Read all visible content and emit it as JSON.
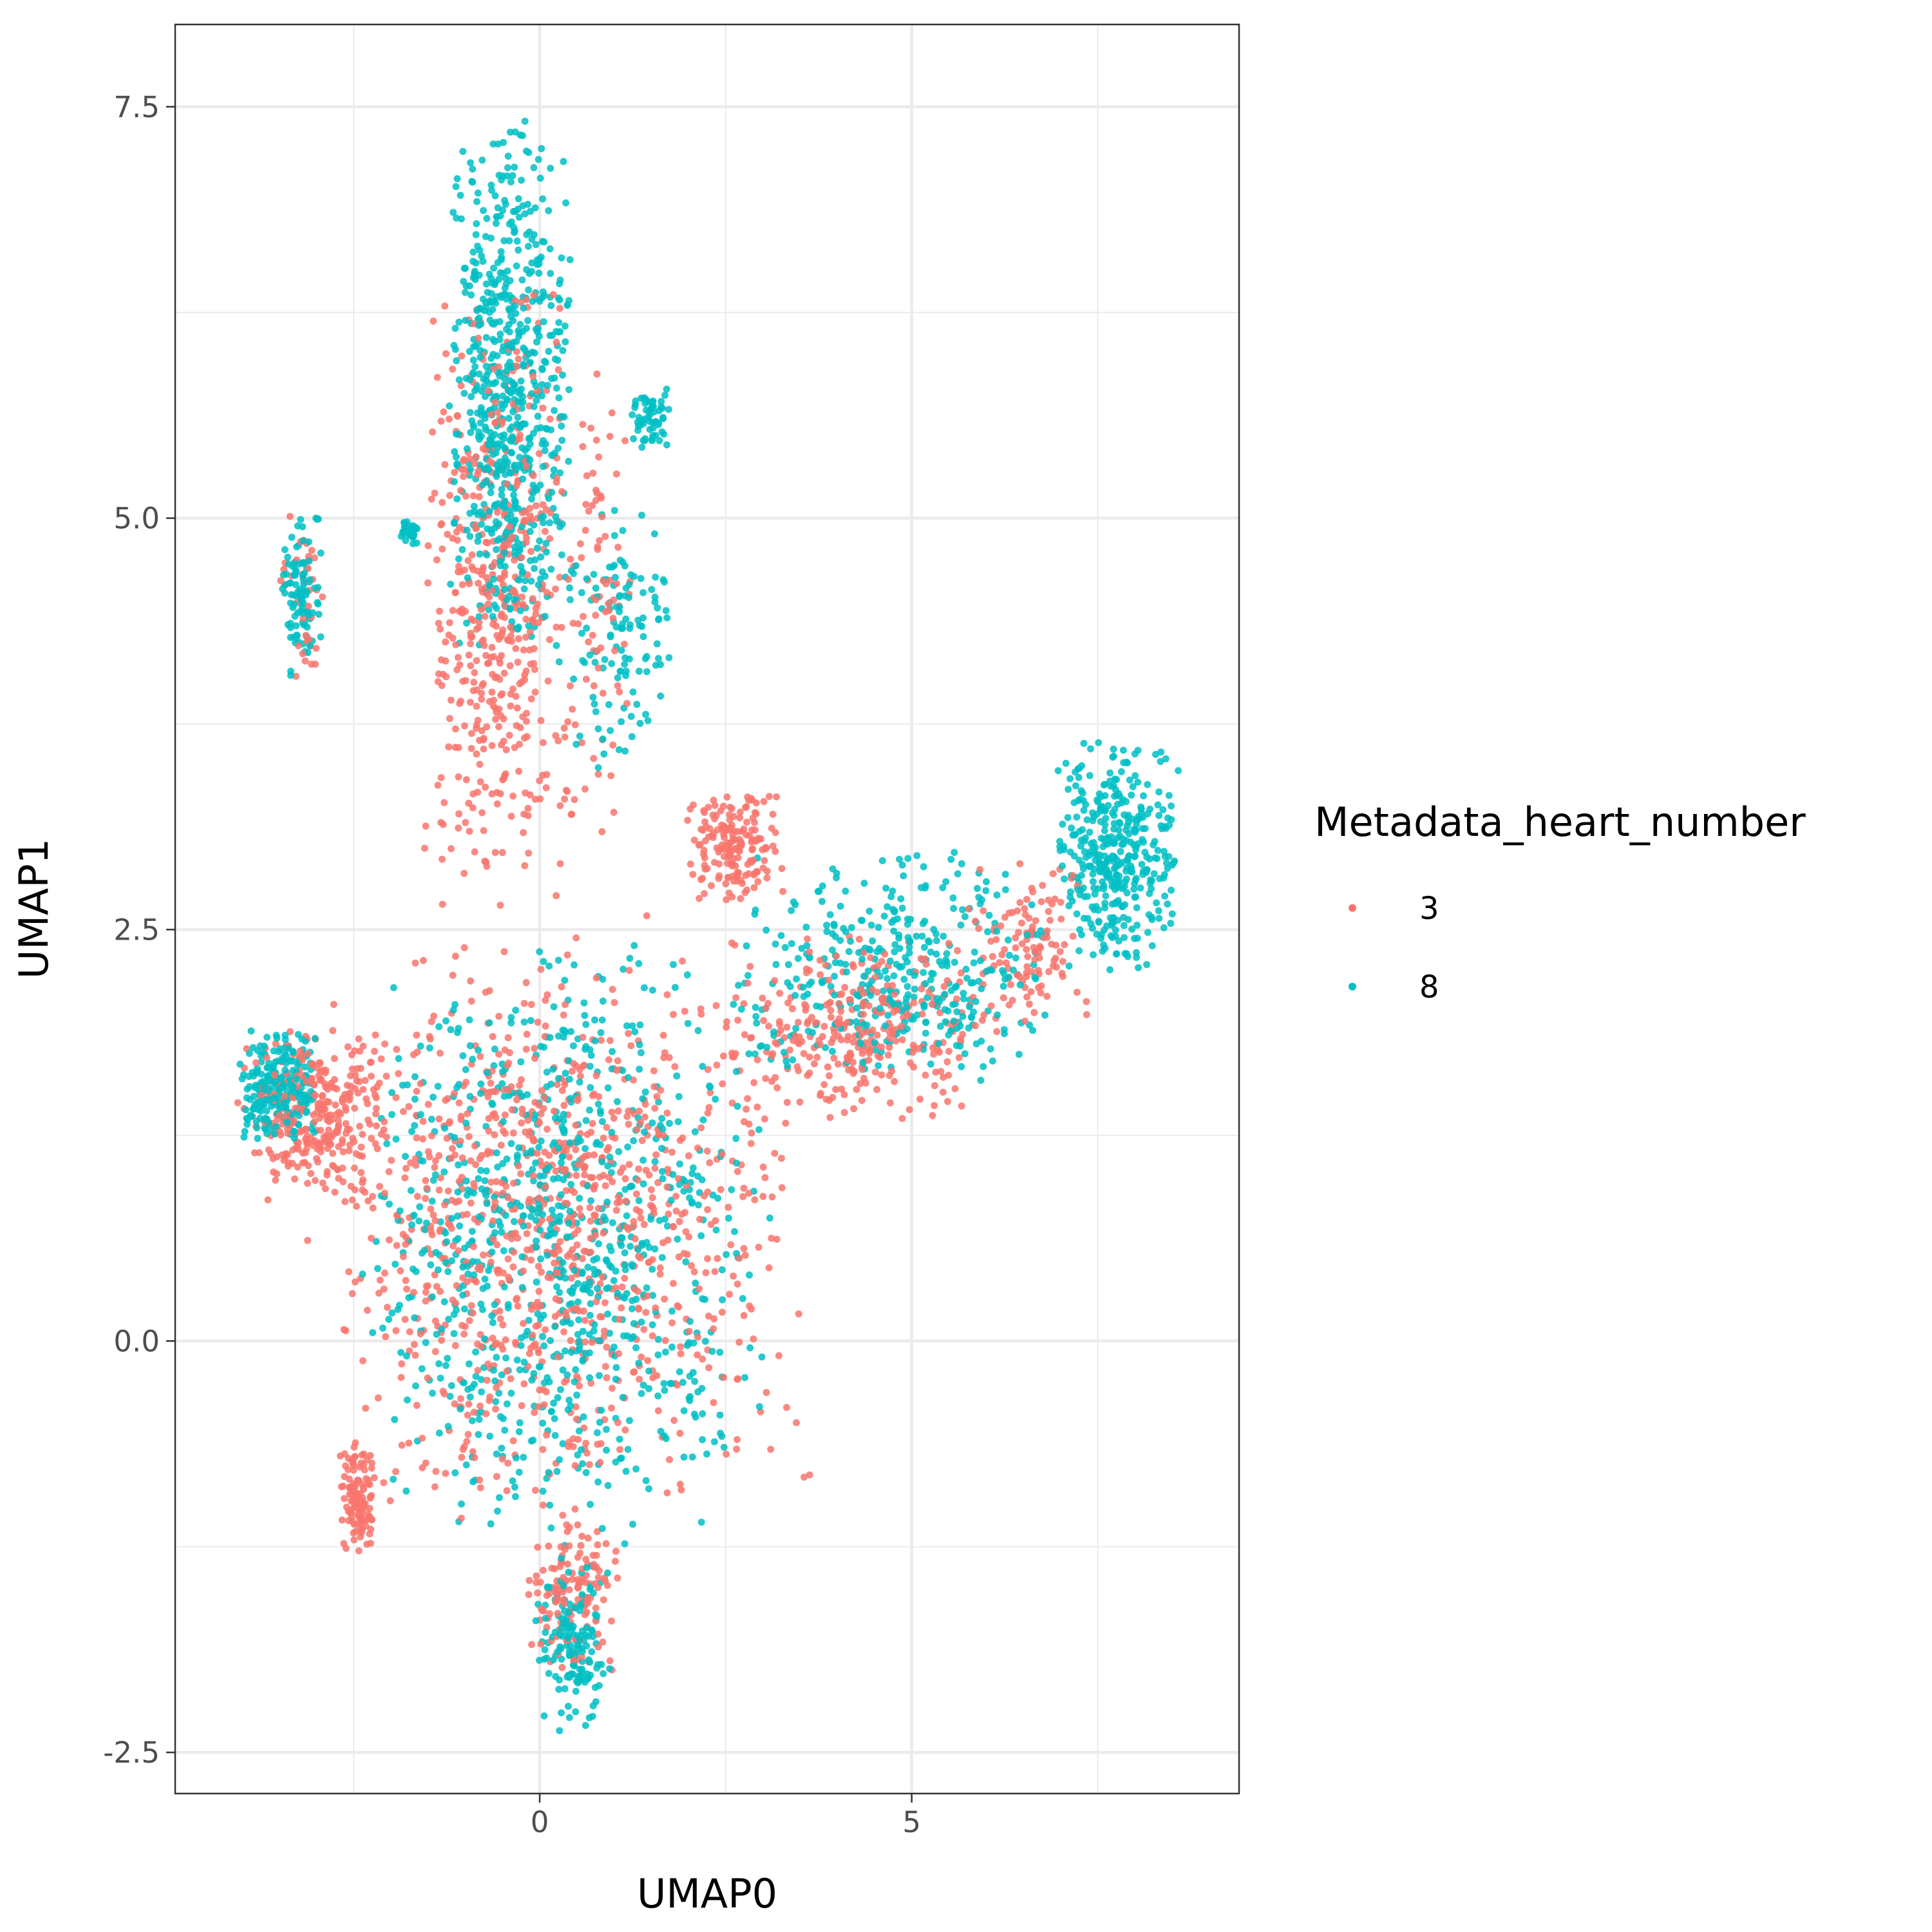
{
  "chart_data": {
    "type": "scatter",
    "xlabel": "UMAP0",
    "ylabel": "UMAP1",
    "xlim": [
      -4.9,
      9.4
    ],
    "ylim": [
      -2.75,
      8.0
    ],
    "x_ticks": [
      0,
      5
    ],
    "x_tick_labels": [
      "0",
      "5"
    ],
    "y_ticks": [
      -2.5,
      0.0,
      2.5,
      5.0,
      7.5
    ],
    "y_tick_labels": [
      "-2.5",
      "0.0",
      "2.5",
      "5.0",
      "7.5"
    ],
    "grid": true,
    "legend": {
      "title": "Metadata_heart_number",
      "placement": "right",
      "entries": [
        {
          "label": "3",
          "color": "#F8766D"
        },
        {
          "label": "8",
          "color": "#00BFC4"
        }
      ]
    },
    "series": [
      {
        "name": "3",
        "color": "#F8766D",
        "regions": [
          {
            "x": [
              -4.1,
              -1.8
            ],
            "y": [
              0.8,
              1.9
            ],
            "n": 300
          },
          {
            "x": [
              -3.2,
              3.7
            ],
            "y": [
              -1.2,
              2.6
            ],
            "n": 1000
          },
          {
            "x": [
              -2.7,
              -2.2
            ],
            "y": [
              -1.3,
              -0.6
            ],
            "n": 120
          },
          {
            "x": [
              -0.2,
              1.1
            ],
            "y": [
              -2.1,
              -1.0
            ],
            "n": 140
          },
          {
            "x": [
              -1.6,
              0.5
            ],
            "y": [
              2.5,
              6.5
            ],
            "n": 500
          },
          {
            "x": [
              1.9,
              3.3
            ],
            "y": [
              2.6,
              3.4
            ],
            "n": 180
          },
          {
            "x": [
              2.5,
              6.0
            ],
            "y": [
              1.3,
              2.5
            ],
            "n": 300
          },
          {
            "x": [
              5.5,
              7.5
            ],
            "y": [
              1.8,
              3.0
            ],
            "n": 120
          },
          {
            "x": [
              -3.5,
              -2.9
            ],
            "y": [
              4.0,
              5.1
            ],
            "n": 40
          },
          {
            "x": [
              0.2,
              1.3
            ],
            "y": [
              3.0,
              6.0
            ],
            "n": 80
          }
        ]
      },
      {
        "name": "8",
        "color": "#00BFC4",
        "regions": [
          {
            "x": [
              -4.1,
              -2.9
            ],
            "y": [
              1.2,
              1.9
            ],
            "n": 250
          },
          {
            "x": [
              -2.6,
              3.3
            ],
            "y": [
              -1.3,
              2.5
            ],
            "n": 900
          },
          {
            "x": [
              -1.3,
              0.5
            ],
            "y": [
              4.0,
              7.5
            ],
            "n": 700
          },
          {
            "x": [
              0.3,
              1.9
            ],
            "y": [
              3.4,
              5.2
            ],
            "n": 120
          },
          {
            "x": [
              1.2,
              1.8
            ],
            "y": [
              5.4,
              5.8
            ],
            "n": 60
          },
          {
            "x": [
              -3.5,
              -2.9
            ],
            "y": [
              4.0,
              5.1
            ],
            "n": 100
          },
          {
            "x": [
              -1.9,
              -1.6
            ],
            "y": [
              4.8,
              5.0
            ],
            "n": 30
          },
          {
            "x": [
              6.9,
              8.6
            ],
            "y": [
              2.2,
              3.7
            ],
            "n": 400
          },
          {
            "x": [
              2.5,
              7.0
            ],
            "y": [
              1.5,
              3.0
            ],
            "n": 400
          },
          {
            "x": [
              -0.1,
              1.0
            ],
            "y": [
              -2.4,
              -1.3
            ],
            "n": 150
          }
        ]
      }
    ]
  }
}
